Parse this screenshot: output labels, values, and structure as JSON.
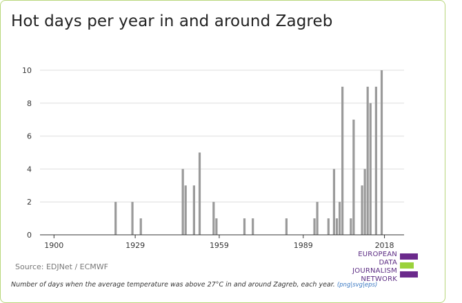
{
  "title": "Hot days per year in and around Zagreb",
  "source": "Source: EDJNet / ECMWF",
  "note": "Number of days when the average temperature was above 27°C in and around Zagreb, each year.",
  "links": "(png|svg|eps)",
  "logo": {
    "line1": "EUROPEAN",
    "line2": "DATA JOURNALISM",
    "line3": "NETWORK",
    "colors": [
      "#6b2a8c",
      "#9bd23c",
      "#6b2a8c"
    ]
  },
  "colors": {
    "bar": "#9a9a9a",
    "grid": "#dddddd",
    "axis": "#333333",
    "frame": "#b7d67a"
  },
  "chart_data": {
    "type": "bar",
    "title": "Hot days per year in and around Zagreb",
    "xlabel": "",
    "ylabel": "",
    "xlim": [
      1895,
      2025
    ],
    "ylim": [
      0,
      10
    ],
    "x_ticks": [
      1900,
      1929,
      1959,
      1989,
      2018
    ],
    "y_ticks": [
      0,
      2,
      4,
      6,
      8,
      10
    ],
    "grid": true,
    "x": [
      1922,
      1928,
      1931,
      1946,
      1947,
      1950,
      1952,
      1957,
      1958,
      1968,
      1971,
      1983,
      1993,
      1994,
      1998,
      2000,
      2001,
      2002,
      2003,
      2006,
      2007,
      2010,
      2011,
      2012,
      2013,
      2015,
      2017
    ],
    "values": [
      2,
      2,
      1,
      4,
      3,
      3,
      5,
      2,
      1,
      1,
      1,
      1,
      1,
      2,
      1,
      4,
      1,
      2,
      9,
      1,
      7,
      3,
      4,
      9,
      8,
      9,
      10
    ]
  }
}
